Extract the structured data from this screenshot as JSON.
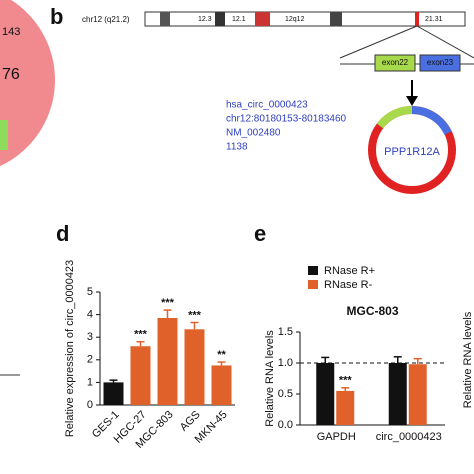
{
  "fragments": {
    "left_count": "143",
    "left_overlap": "76",
    "right_axis": "Relative RNA levels"
  },
  "diagram": {
    "label": "b",
    "chromosome": "chr12 (q21.2)",
    "bands": [
      "12.3",
      "12.1",
      "12q12",
      "21.31"
    ],
    "exons": [
      "exon22",
      "exon23"
    ],
    "info": [
      "hsa_circ_0000423",
      "chr12:80180153-80183460",
      "NM_002480",
      "1138"
    ],
    "gene": "PPP1R12A"
  },
  "chart_data": [
    {
      "type": "bar",
      "panel_label": "d",
      "ylabel": "Relative expression of circ_0000423",
      "categories": [
        "GES-1",
        "HGC-27",
        "MGC-803",
        "AGS",
        "MKN-45"
      ],
      "values": [
        1.0,
        2.6,
        3.85,
        3.35,
        1.75
      ],
      "errors": [
        0.1,
        0.2,
        0.35,
        0.3,
        0.15
      ],
      "significance": [
        null,
        "***",
        "***",
        "***",
        "**"
      ],
      "colors": [
        "#111111",
        "#e0622a",
        "#e0622a",
        "#e0622a",
        "#e0622a"
      ],
      "ylim": [
        0,
        5
      ],
      "yticks": [
        0,
        1,
        2,
        3,
        4,
        5
      ]
    },
    {
      "type": "grouped_bar",
      "panel_label": "e",
      "title": "MGC-803",
      "ylabel": "Relative RNA levels",
      "categories": [
        "GAPDH",
        "circ_0000423"
      ],
      "series": [
        {
          "name": "RNase R+",
          "color": "#111111",
          "values": [
            1.0,
            1.0
          ],
          "errors": [
            0.09,
            0.1
          ],
          "significance": [
            null,
            null
          ]
        },
        {
          "name": "RNase R-",
          "color": "#e0622a",
          "values": [
            0.55,
            0.98
          ],
          "errors": [
            0.05,
            0.09
          ],
          "significance": [
            "***",
            null
          ]
        }
      ],
      "ref_line": 1.0,
      "ylim": [
        0,
        1.5
      ],
      "yticks": [
        {
          "value": 0,
          "label": "0.0"
        },
        {
          "value": 0.5,
          "label": "0.5"
        },
        {
          "value": 1,
          "label": "1.0"
        },
        {
          "value": 1.5,
          "label": "1.5"
        }
      ]
    }
  ]
}
